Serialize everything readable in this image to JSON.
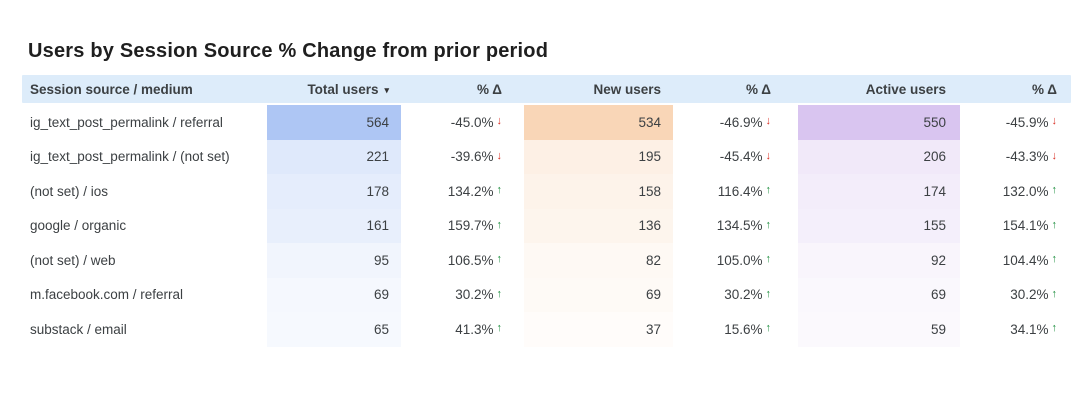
{
  "title": "Users by Session Source % Change from prior period",
  "colors": {
    "header_bg": "#ddecfa",
    "positive_arrow": "#1e8e3e",
    "negative_arrow": "#d93025",
    "total_users_heat": "#aec6f4",
    "new_users_heat": "#f9d6b7",
    "active_users_heat": "#d9c5f0"
  },
  "table": {
    "sort_icon": "▾",
    "up_arrow": "↑",
    "down_arrow": "↓",
    "columns": [
      {
        "label": "Session source / medium"
      },
      {
        "label": "Total users"
      },
      {
        "label": "% Δ"
      },
      {
        "label": "New users"
      },
      {
        "label": "% Δ"
      },
      {
        "label": "Active users"
      },
      {
        "label": "% Δ"
      }
    ],
    "heat_max": {
      "total_users": 564,
      "new_users": 534,
      "active_users": 550
    },
    "rows": [
      {
        "source": "ig_text_post_permalink / referral",
        "total_users": 564,
        "total_delta": "-45.0%",
        "total_dir": "down",
        "new_users": 534,
        "new_delta": "-46.9%",
        "new_dir": "down",
        "active_users": 550,
        "active_delta": "-45.9%",
        "active_dir": "down"
      },
      {
        "source": "ig_text_post_permalink / (not set)",
        "total_users": 221,
        "total_delta": "-39.6%",
        "total_dir": "down",
        "new_users": 195,
        "new_delta": "-45.4%",
        "new_dir": "down",
        "active_users": 206,
        "active_delta": "-43.3%",
        "active_dir": "down"
      },
      {
        "source": "(not set) / ios",
        "total_users": 178,
        "total_delta": "134.2%",
        "total_dir": "up",
        "new_users": 158,
        "new_delta": "116.4%",
        "new_dir": "up",
        "active_users": 174,
        "active_delta": "132.0%",
        "active_dir": "up"
      },
      {
        "source": "google / organic",
        "total_users": 161,
        "total_delta": "159.7%",
        "total_dir": "up",
        "new_users": 136,
        "new_delta": "134.5%",
        "new_dir": "up",
        "active_users": 155,
        "active_delta": "154.1%",
        "active_dir": "up"
      },
      {
        "source": "(not set) / web",
        "total_users": 95,
        "total_delta": "106.5%",
        "total_dir": "up",
        "new_users": 82,
        "new_delta": "105.0%",
        "new_dir": "up",
        "active_users": 92,
        "active_delta": "104.4%",
        "active_dir": "up"
      },
      {
        "source": "m.facebook.com / referral",
        "total_users": 69,
        "total_delta": "30.2%",
        "total_dir": "up",
        "new_users": 69,
        "new_delta": "30.2%",
        "new_dir": "up",
        "active_users": 69,
        "active_delta": "30.2%",
        "active_dir": "up"
      },
      {
        "source": "substack / email",
        "total_users": 65,
        "total_delta": "41.3%",
        "total_dir": "up",
        "new_users": 37,
        "new_delta": "15.6%",
        "new_dir": "up",
        "active_users": 59,
        "active_delta": "34.1%",
        "active_dir": "up"
      }
    ]
  },
  "chart_data": {
    "type": "table",
    "title": "Users by Session Source % Change from prior period",
    "columns": [
      "Session source / medium",
      "Total users",
      "% Δ",
      "New users",
      "% Δ",
      "Active users",
      "% Δ"
    ],
    "sorted_by": "Total users (descending)",
    "heatmap": {
      "Total users": "blue",
      "New users": "orange",
      "Active users": "purple"
    },
    "rows": [
      [
        "ig_text_post_permalink / referral",
        564,
        "-45.0%",
        534,
        "-46.9%",
        550,
        "-45.9%"
      ],
      [
        "ig_text_post_permalink / (not set)",
        221,
        "-39.6%",
        195,
        "-45.4%",
        206,
        "-43.3%"
      ],
      [
        "(not set) / ios",
        178,
        "134.2%",
        158,
        "116.4%",
        174,
        "132.0%"
      ],
      [
        "google / organic",
        161,
        "159.7%",
        136,
        "134.5%",
        155,
        "154.1%"
      ],
      [
        "(not set) / web",
        95,
        "106.5%",
        82,
        "105.0%",
        92,
        "104.4%"
      ],
      [
        "m.facebook.com / referral",
        69,
        "30.2%",
        69,
        "30.2%",
        69,
        "30.2%"
      ],
      [
        "substack / email",
        65,
        "41.3%",
        37,
        "15.6%",
        59,
        "34.1%"
      ]
    ]
  }
}
